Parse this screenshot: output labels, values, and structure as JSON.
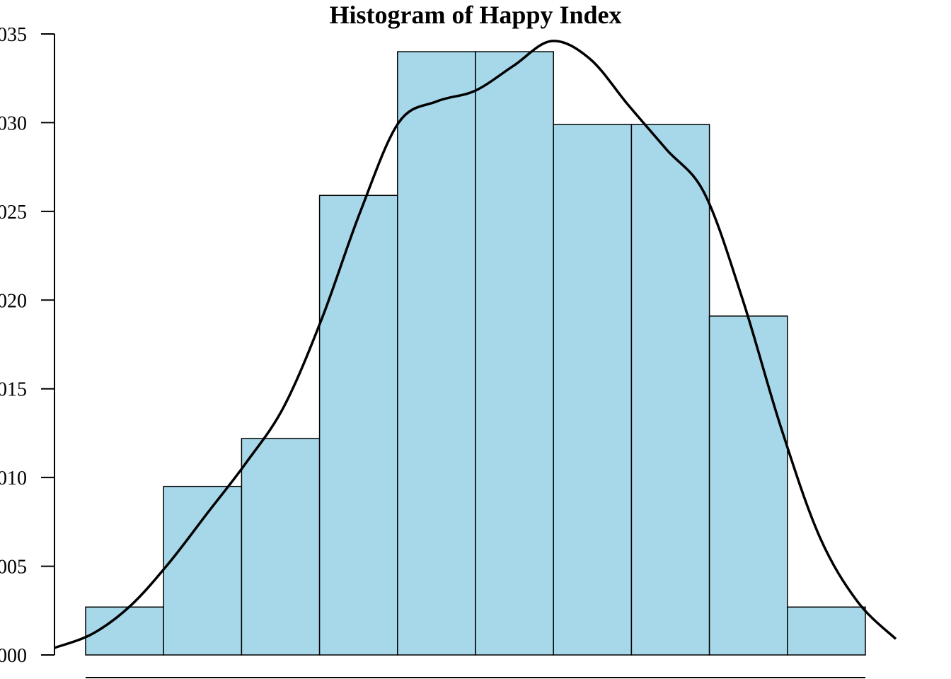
{
  "chart_data": {
    "type": "bar",
    "title": "Histogram of Happy Index",
    "xlabel": "",
    "ylabel": "",
    "ylim": [
      0.0,
      0.035
    ],
    "y_ticks": [
      0.0,
      0.005,
      0.01,
      0.015,
      0.02,
      0.025,
      0.03,
      0.035
    ],
    "y_tick_labels": [
      "000",
      "005",
      "010",
      "015",
      "020",
      "025",
      "030",
      "035"
    ],
    "bar_density": [
      0.0027,
      0.0095,
      0.0122,
      0.0259,
      0.034,
      0.034,
      0.0299,
      0.0299,
      0.0191,
      0.0027
    ],
    "density_curve": [
      0.0004,
      0.0012,
      0.0028,
      0.0052,
      0.008,
      0.0108,
      0.014,
      0.019,
      0.025,
      0.03,
      0.0312,
      0.0318,
      0.0332,
      0.0346,
      0.0336,
      0.031,
      0.0285,
      0.026,
      0.02,
      0.0128,
      0.0067,
      0.003,
      0.0009
    ],
    "grid": false,
    "legend": "none",
    "colors": {
      "bar_fill": "#a6d8ea",
      "bar_edge": "#000000",
      "curve": "#000000"
    }
  }
}
